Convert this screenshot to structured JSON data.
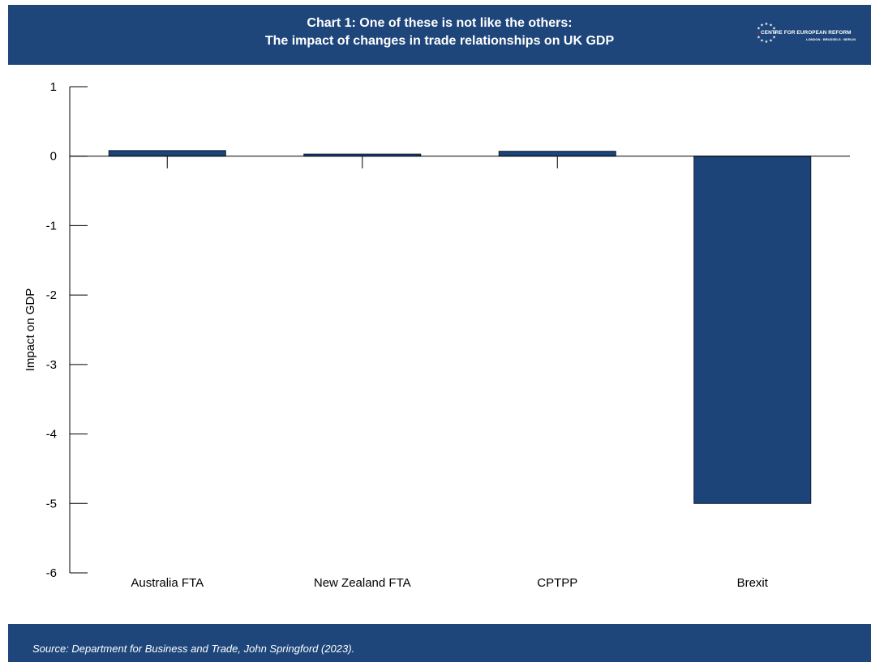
{
  "header": {
    "title_line1": "Chart 1: One of these is not like the others:",
    "title_line2": "The impact of changes in trade relationships on UK GDP",
    "logo_name": "CENTRE FOR EUROPEAN REFORM",
    "logo_cities": "LONDON · BRUSSELS · BERLIN",
    "logo_icon": "eu-stars-circle-icon"
  },
  "colors": {
    "brand": "#1e467b",
    "bar": "#1c4479",
    "bar_outline": "#0b1b33",
    "axis": "#000000",
    "text": "#000000",
    "logo_accent": "#c8102e"
  },
  "chart_data": {
    "type": "bar",
    "title": "",
    "xlabel": "",
    "ylabel": "Impact on GDP",
    "categories": [
      "Australia FTA",
      "New Zealand FTA",
      "CPTPP",
      "Brexit"
    ],
    "values": [
      0.08,
      0.03,
      0.07,
      -5.0
    ],
    "ylim": [
      -6,
      1
    ],
    "yticks": [
      1,
      0,
      -1,
      -2,
      -3,
      -4,
      -5,
      -6
    ],
    "ytick_labels": [
      "1",
      "0",
      "-1",
      "-2",
      "-3",
      "-4",
      "-5",
      "-6"
    ],
    "grid": false,
    "legend": "none"
  },
  "footer": {
    "source": "Source: Department for Business and Trade, John Springford (2023)."
  }
}
